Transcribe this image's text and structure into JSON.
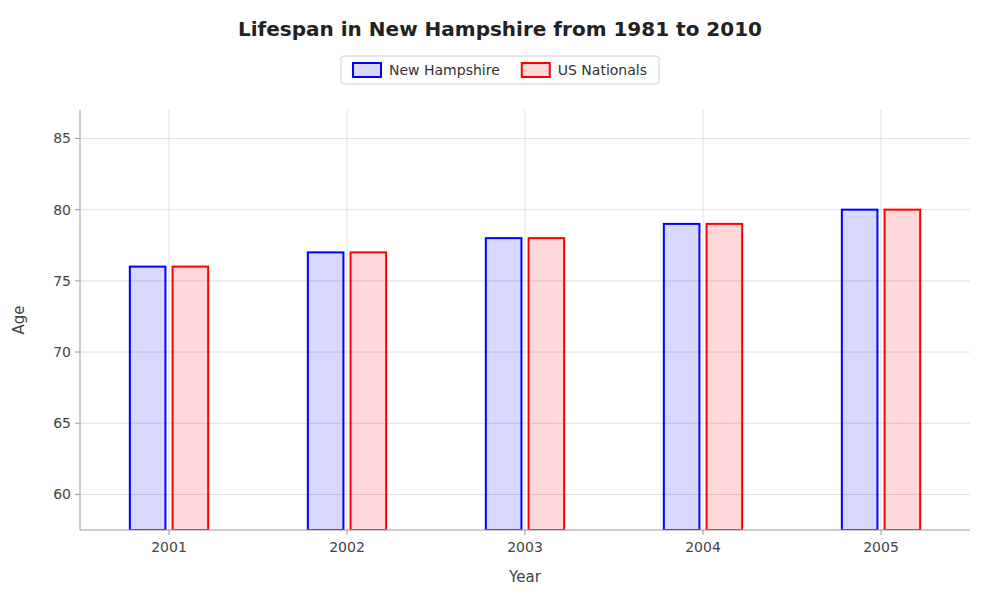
{
  "chart_data": {
    "type": "bar",
    "title": "Lifespan in New Hampshire from 1981 to 2010",
    "xlabel": "Year",
    "ylabel": "Age",
    "categories": [
      "2001",
      "2002",
      "2003",
      "2004",
      "2005"
    ],
    "series": [
      {
        "name": "New Hampshire",
        "color": "#0000ff",
        "values": [
          76,
          77,
          78,
          79,
          80
        ]
      },
      {
        "name": "US Nationals",
        "color": "#ff0000",
        "values": [
          76,
          77,
          78,
          79,
          80
        ]
      }
    ],
    "ylim": [
      57.5,
      87
    ],
    "yticks": [
      60,
      65,
      70,
      75,
      80,
      85
    ],
    "grid": true,
    "legend": "top"
  }
}
